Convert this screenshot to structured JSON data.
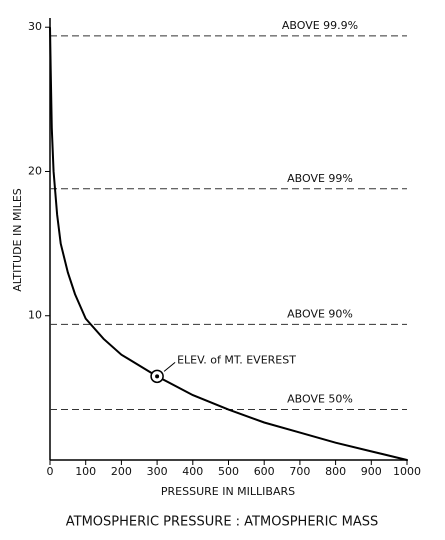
{
  "chart_data": {
    "type": "line",
    "title": "ATMOSPHERIC PRESSURE : ATMOSPHERIC MASS",
    "x_label": "PRESSURE IN MILLIBARS",
    "y_label": "ALTITUDE IN MILES",
    "x": [
      1000,
      900,
      800,
      700,
      600,
      500,
      400,
      300,
      200,
      150,
      100,
      70,
      50,
      30,
      20,
      10,
      5,
      2,
      0
    ],
    "values": [
      0,
      0.6,
      1.2,
      1.9,
      2.6,
      3.5,
      4.5,
      5.8,
      7.3,
      8.4,
      9.8,
      11.5,
      13,
      15,
      17,
      20,
      23,
      27,
      30
    ],
    "color": "#000000",
    "xlim": [
      0,
      1000
    ],
    "ylim": [
      0,
      30.5
    ],
    "xticks": [
      0,
      100,
      200,
      300,
      400,
      500,
      600,
      700,
      800,
      900,
      1000
    ],
    "yticks": [
      10,
      20,
      30
    ],
    "grid": false,
    "reference_lines": [
      {
        "value": 29.4,
        "label": "ABOVE 99.9%"
      },
      {
        "value": 18.8,
        "label": "ABOVE 99%"
      },
      {
        "value": 9.4,
        "label": "ABOVE 90%"
      },
      {
        "value": 3.5,
        "label": "ABOVE 50%"
      }
    ],
    "annotations": [
      {
        "text": "ELEV. of MT. EVEREST",
        "x": 300,
        "y": 5.8
      }
    ]
  }
}
